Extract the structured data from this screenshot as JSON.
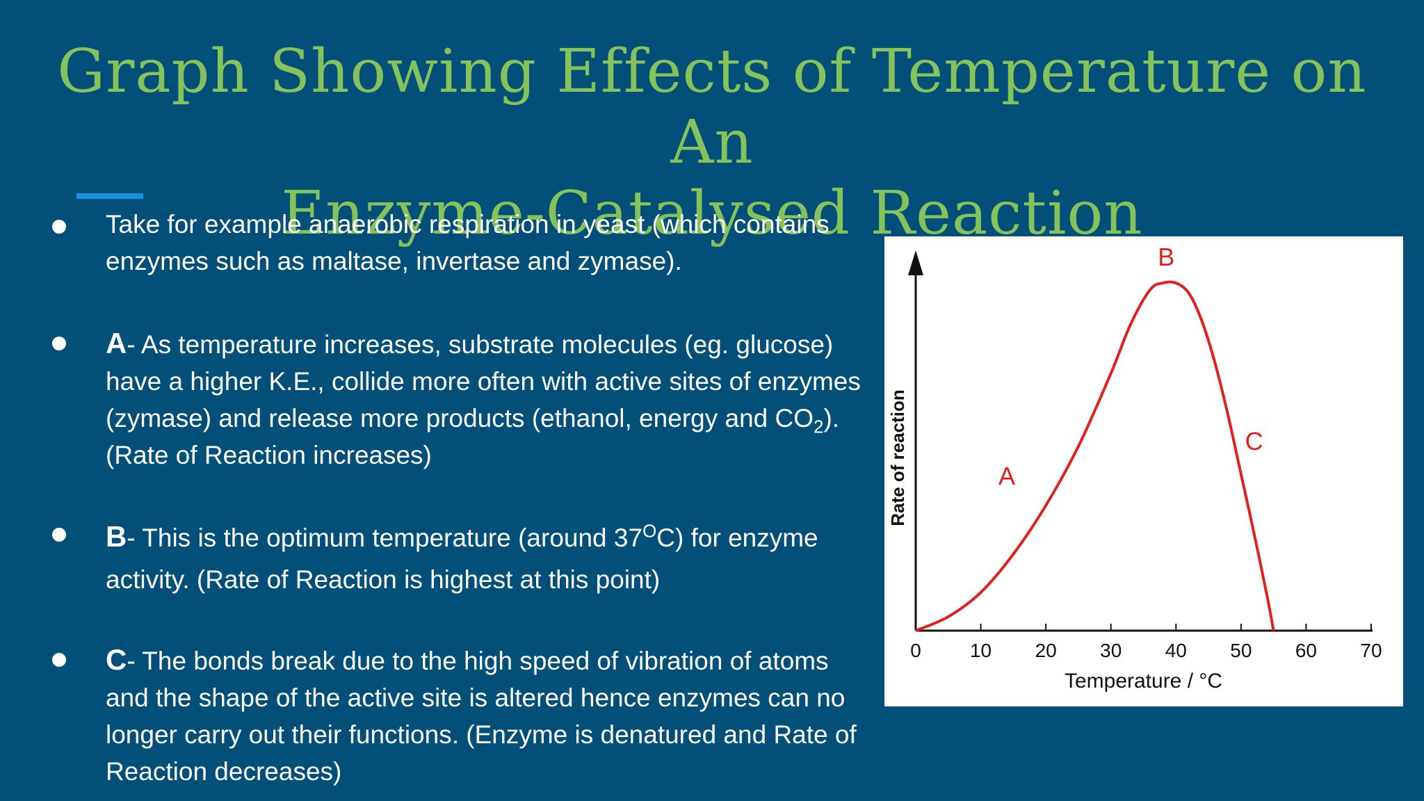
{
  "title": {
    "line1": "Graph Showing Effects of Temperature on An",
    "line2": "Enzyme-Catalysed Reaction"
  },
  "bullets": {
    "b1": {
      "line1": "Take for example anaerobic respiration in yeast (which contains",
      "line2": "enzymes such as maltase, invertase and zymase)."
    },
    "b2": {
      "lead": "A",
      "line1": "- As temperature increases, substrate molecules (eg. glucose)",
      "line2": "have a higher K.E., collide more often with  active sites of enzymes",
      "line3_pre": "(zymase) and release more products (ethanol, energy and CO",
      "line3_sub": "2",
      "line3_post": ").",
      "line4": "(Rate of Reaction increases)"
    },
    "b3": {
      "lead": "B",
      "line1_pre": "- This is the optimum temperature (around 37",
      "line1_sup": "O",
      "line1_post": "C) for enzyme",
      "line2": "activity. (Rate of Reaction is highest at this point)"
    },
    "b4": {
      "lead": "C",
      "line1": "- The bonds break due to the high speed of vibration of atoms",
      "line2": "and the shape of the active site is altered hence enzymes can no",
      "line3": "longer carry out their functions. (Enzyme is denatured and Rate of",
      "line4": "Reaction decreases)"
    }
  },
  "colors": {
    "background": "#02507a",
    "title": "#86c25a",
    "accent": "#1a8fe0",
    "curve": "#e0201c"
  },
  "chart_data": {
    "type": "line",
    "xlabel": "Temperature / °C",
    "ylabel": "Rate of reaction",
    "xlim": [
      0,
      70
    ],
    "ylim": [
      0,
      1.1
    ],
    "x_ticks": [
      "0",
      "10",
      "20",
      "30",
      "40",
      "50",
      "60",
      "70"
    ],
    "series": [
      {
        "x": [
          0,
          5,
          10,
          15,
          20,
          25,
          30,
          33,
          36,
          38,
          40,
          42,
          44,
          46,
          48,
          50,
          52,
          54,
          55
        ],
        "y": [
          0.0,
          0.04,
          0.11,
          0.22,
          0.36,
          0.53,
          0.74,
          0.88,
          0.98,
          1.0,
          1.0,
          0.97,
          0.89,
          0.77,
          0.62,
          0.45,
          0.28,
          0.1,
          0.0
        ]
      }
    ],
    "annotations": [
      {
        "text": "A",
        "x": 14,
        "y": 0.42
      },
      {
        "text": "B",
        "x": 38.5,
        "y": 1.05
      },
      {
        "text": "C",
        "x": 52,
        "y": 0.52
      }
    ]
  }
}
